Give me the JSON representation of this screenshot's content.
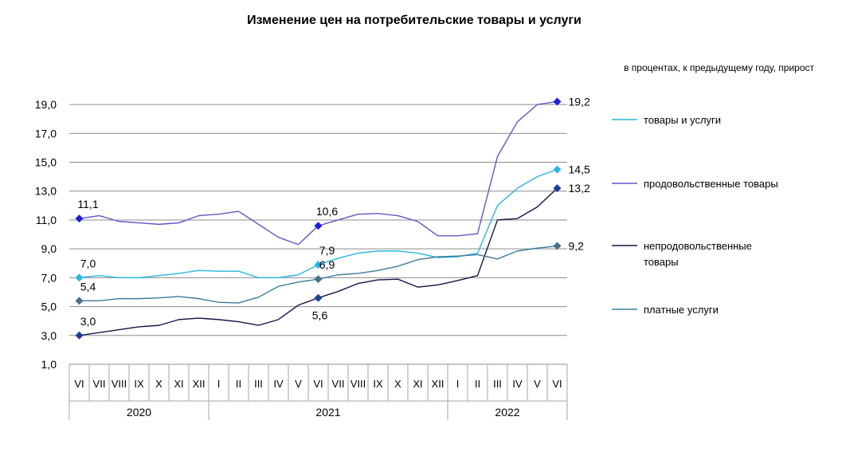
{
  "chart_data": {
    "type": "line",
    "title": "Изменение цен на потребительские товары и услуги",
    "subtitle": "в процентах, к предыдущему году, прирост",
    "ylim": [
      1,
      20
    ],
    "y_ticks": [
      "1,0",
      "3,0",
      "5,0",
      "7,0",
      "9,0",
      "11,0",
      "13,0",
      "15,0",
      "17,0",
      "19,0"
    ],
    "y_tick_values": [
      1,
      3,
      5,
      7,
      9,
      11,
      13,
      15,
      17,
      19
    ],
    "categories": [
      "VI",
      "VII",
      "VIII",
      "IX",
      "X",
      "XI",
      "XII",
      "I",
      "II",
      "III",
      "IV",
      "V",
      "VI",
      "VII",
      "VIII",
      "IX",
      "X",
      "XI",
      "XII",
      "I",
      "II",
      "III",
      "IV",
      "V",
      "VI"
    ],
    "years": [
      {
        "label": "2020",
        "start": 0,
        "end": 6
      },
      {
        "label": "2021",
        "start": 7,
        "end": 18
      },
      {
        "label": "2022",
        "start": 19,
        "end": 24
      }
    ],
    "grid": "horizontal",
    "legend_position": "right",
    "series": [
      {
        "name": "товары и услуги",
        "color": "#29B6DE",
        "marker_color": "#29B6DE",
        "values": [
          7.0,
          7.15,
          7.0,
          7.0,
          7.15,
          7.3,
          7.5,
          7.45,
          7.45,
          7.0,
          7.0,
          7.2,
          7.9,
          8.35,
          8.7,
          8.85,
          8.85,
          8.7,
          8.4,
          8.45,
          8.7,
          12.0,
          13.2,
          14.0,
          14.5
        ],
        "labels": [
          {
            "index": 0,
            "text": "7,0",
            "position": "above"
          },
          {
            "index": 12,
            "text": "7,9",
            "position": "above"
          },
          {
            "index": 24,
            "text": "14,5",
            "position": "right"
          }
        ]
      },
      {
        "name": "продовольственные товары",
        "color": "#6455C6",
        "marker_color": "#1F1FD6",
        "values": [
          11.1,
          11.3,
          10.9,
          10.8,
          10.7,
          10.8,
          11.3,
          11.4,
          11.6,
          10.7,
          9.8,
          9.3,
          10.6,
          11.0,
          11.4,
          11.45,
          11.3,
          10.9,
          9.9,
          9.9,
          10.05,
          15.4,
          17.8,
          19.0,
          19.2
        ],
        "labels": [
          {
            "index": 0,
            "text": "11,1",
            "position": "above"
          },
          {
            "index": 12,
            "text": "10,6",
            "position": "above"
          },
          {
            "index": 24,
            "text": "19,2",
            "position": "right"
          }
        ]
      },
      {
        "name": "непродовольственные товары",
        "color": "#151548",
        "marker_color": "#1C3F94",
        "values": [
          3.0,
          3.2,
          3.4,
          3.6,
          3.7,
          4.1,
          4.2,
          4.1,
          3.95,
          3.7,
          4.1,
          5.1,
          5.6,
          6.05,
          6.6,
          6.85,
          6.9,
          6.35,
          6.5,
          6.8,
          7.15,
          11.0,
          11.1,
          11.9,
          13.2
        ],
        "labels": [
          {
            "index": 0,
            "text": "3,0",
            "position": "above"
          },
          {
            "index": 12,
            "text": "5,6",
            "position": "below"
          },
          {
            "index": 24,
            "text": "13,2",
            "position": "right"
          }
        ]
      },
      {
        "name": "платные услуги",
        "color": "#3F7A9A",
        "marker_color": "#4A6F8A",
        "values": [
          5.4,
          5.4,
          5.55,
          5.55,
          5.6,
          5.7,
          5.55,
          5.3,
          5.25,
          5.65,
          6.4,
          6.7,
          6.9,
          7.2,
          7.3,
          7.5,
          7.8,
          8.25,
          8.45,
          8.5,
          8.6,
          8.3,
          8.85,
          9.05,
          9.2
        ],
        "labels": [
          {
            "index": 0,
            "text": "5,4",
            "position": "above"
          },
          {
            "index": 12,
            "text": "6,9",
            "position": "above"
          },
          {
            "index": 24,
            "text": "9,2",
            "position": "right"
          }
        ]
      }
    ]
  }
}
